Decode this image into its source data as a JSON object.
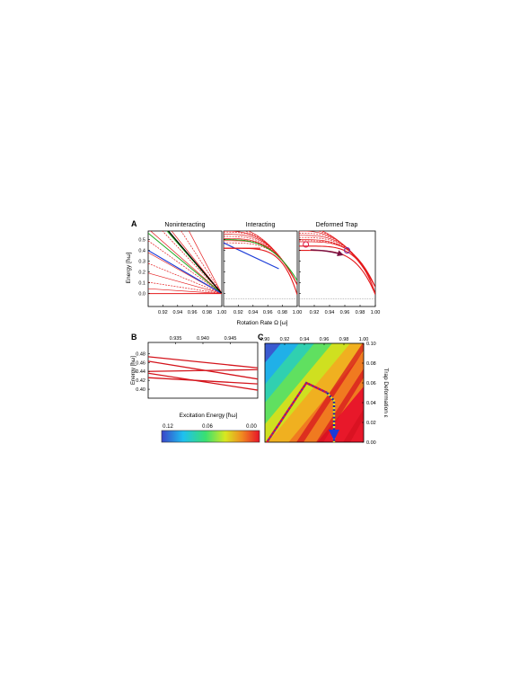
{
  "figure": {
    "panel_letters": {
      "a": "A",
      "b": "B",
      "c": "C"
    }
  },
  "chart_data": [
    {
      "id": "A",
      "type": "line",
      "subplots": [
        {
          "title": "Noninteracting"
        },
        {
          "title": "Interacting"
        },
        {
          "title": "Deformed Trap"
        }
      ],
      "xlabel": "Rotation Rate Ω [ω]",
      "ylabel": "Energy [ħω]",
      "xlim": [
        0.9,
        1.0
      ],
      "ylim": [
        -0.12,
        0.58
      ],
      "x_ticks": [
        0.92,
        0.94,
        0.96,
        0.98,
        1.0
      ],
      "y_ticks": [
        0.0,
        0.1,
        0.2,
        0.3,
        0.4,
        0.5
      ],
      "colors": {
        "levels": "#e41a1c",
        "dashed": "#e41a1c",
        "blue": "#1f3fd8",
        "green": "#1ea81e",
        "black": "#000000",
        "marker": "#e0204a",
        "target_marker": "#7a2a9a",
        "arrow": "#7a1040",
        "baseline": "#888888"
      }
    },
    {
      "id": "B",
      "type": "line",
      "ylabel": "Energy [ħω]",
      "xlim": [
        0.93,
        0.95
      ],
      "ylim": [
        0.38,
        0.505
      ],
      "x_ticks": [
        "0.935",
        "0.940",
        "0.945"
      ],
      "y_ticks": [
        "0.40",
        "0.42",
        "0.44",
        "0.46",
        "0.48"
      ],
      "series": [
        {
          "x": [
            0.93,
            0.95
          ],
          "y": [
            0.473,
            0.448
          ]
        },
        {
          "x": [
            0.93,
            0.95
          ],
          "y": [
            0.463,
            0.423
          ]
        },
        {
          "x": [
            0.93,
            0.95
          ],
          "y": [
            0.44,
            0.444
          ]
        },
        {
          "x": [
            0.93,
            0.95
          ],
          "y": [
            0.436,
            0.398
          ]
        },
        {
          "x": [
            0.93,
            0.95
          ],
          "y": [
            0.426,
            0.412
          ]
        }
      ],
      "color": "#d4141c"
    },
    {
      "id": "C",
      "type": "heatmap",
      "x_ticks": [
        "0.90",
        "0.92",
        "0.94",
        "0.96",
        "0.98",
        "1.00"
      ],
      "xlim": [
        0.9,
        1.0
      ],
      "y_ticks": [
        "0.00",
        "0.02",
        "0.04",
        "0.06",
        "0.08",
        "0.10"
      ],
      "ylim": [
        0.0,
        0.1
      ],
      "ylabel": "Trap Deformation ε",
      "path_red": {
        "x": [
          0.902,
          0.942,
          0.963
        ],
        "y": [
          0.0,
          0.06,
          0.05
        ]
      },
      "path_blue": {
        "x": [
          0.963,
          0.97,
          0.97
        ],
        "y": [
          0.05,
          0.042,
          0.0
        ]
      },
      "arrow_end": {
        "x": 0.97,
        "y": 0.0
      }
    },
    {
      "id": "colorbar",
      "type": "colorbar",
      "title": "Excitation Energy [ħω]",
      "ticks": [
        "0.12",
        "0.06",
        "0.00"
      ],
      "range": [
        0.12,
        0.0
      ],
      "stops": [
        "#3a44c8",
        "#1ec0f0",
        "#3ae070",
        "#d8e820",
        "#f08a20",
        "#e8122a"
      ]
    }
  ]
}
